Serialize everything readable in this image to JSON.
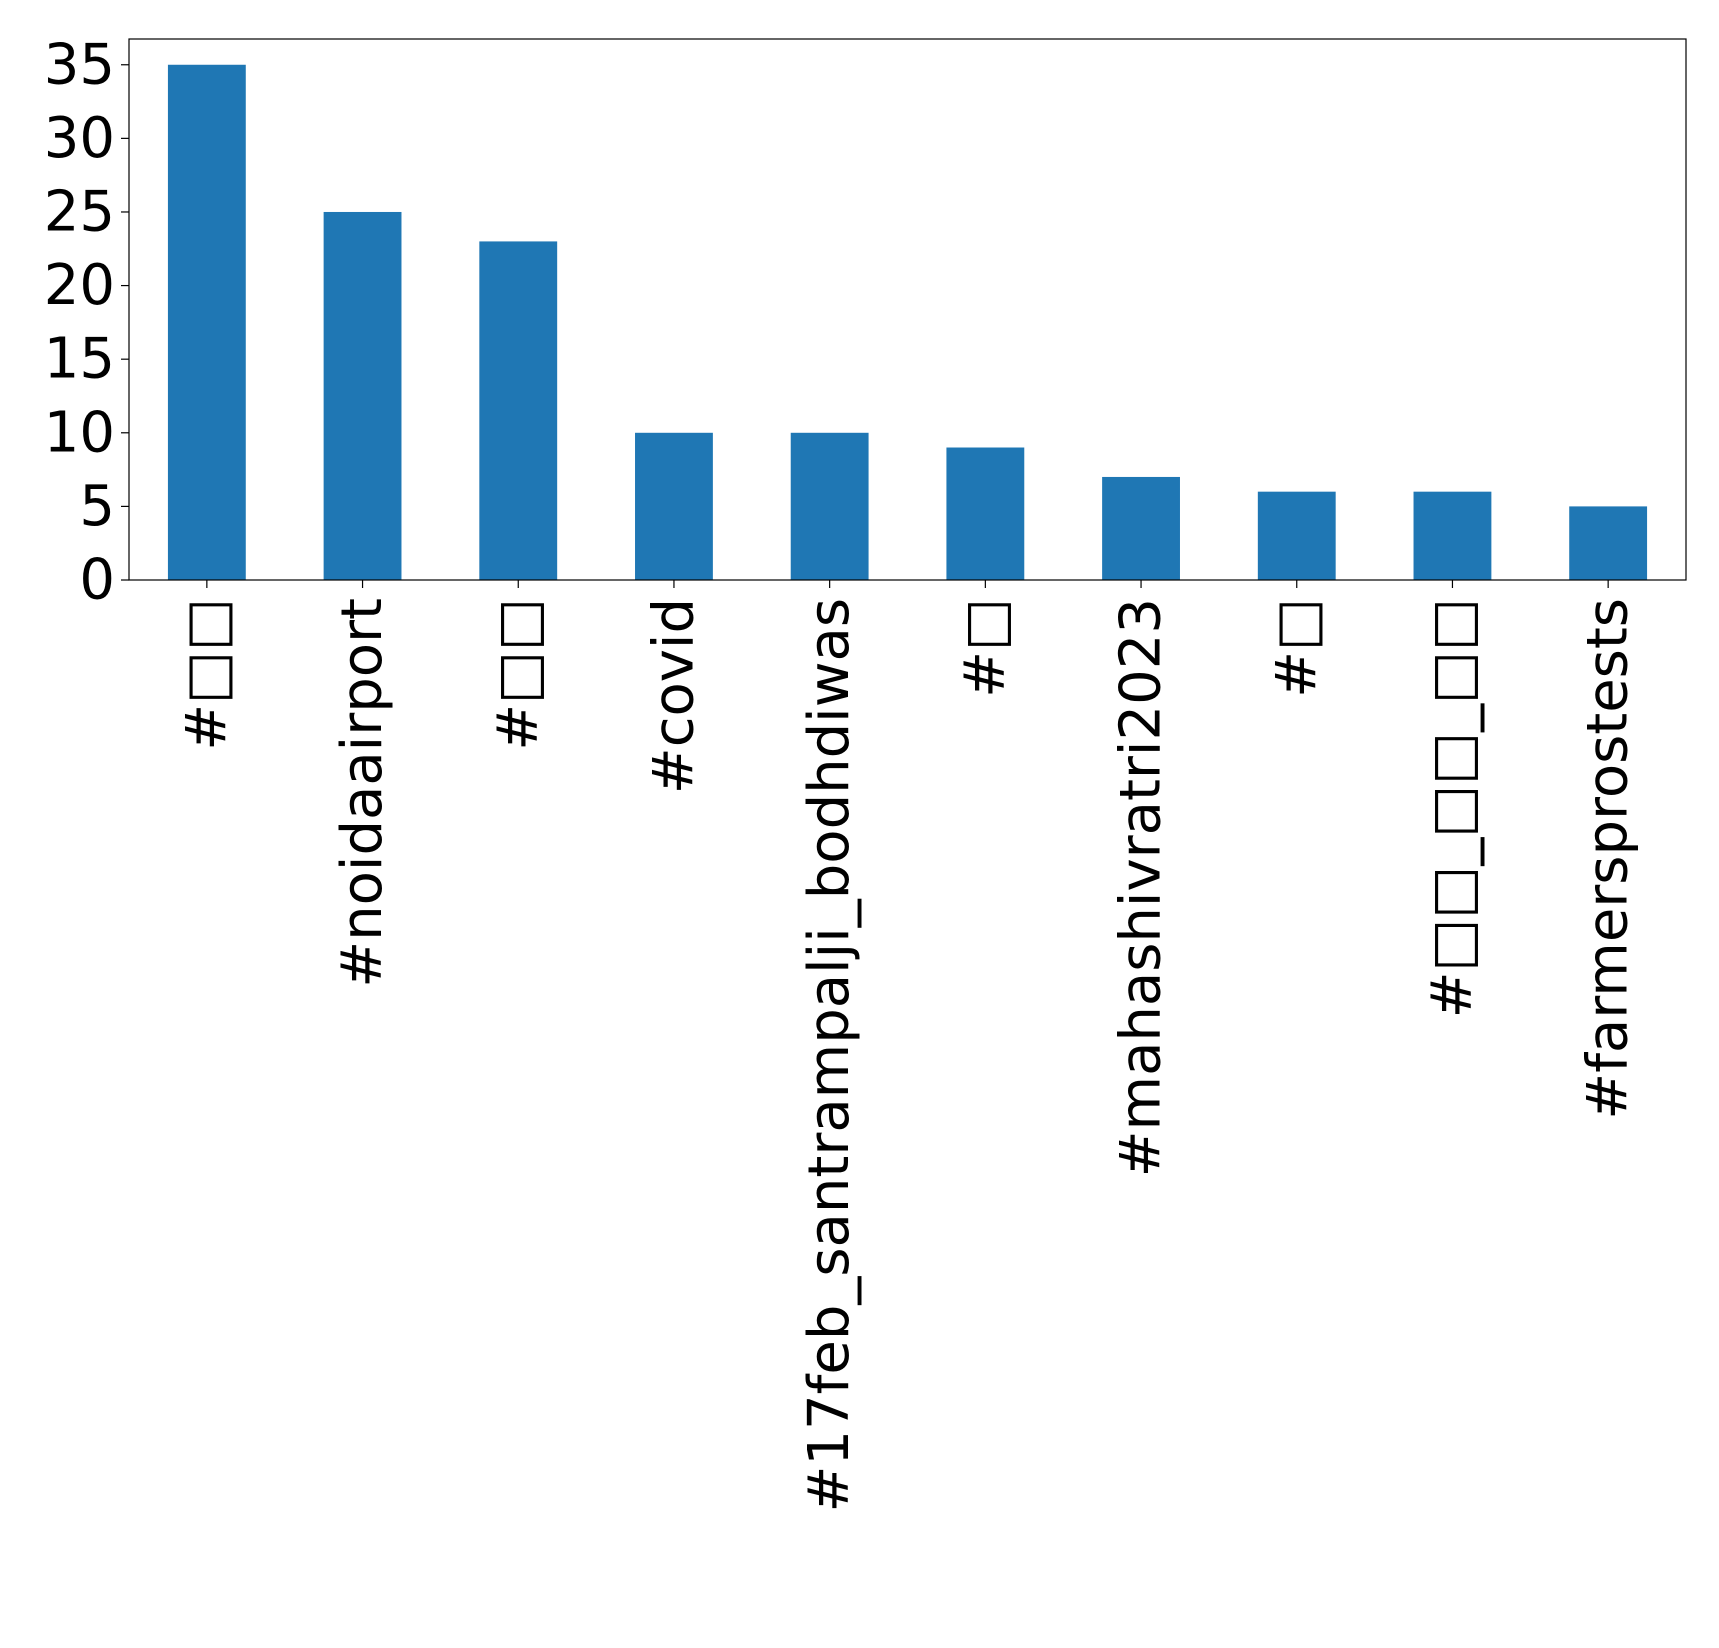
{
  "chart_data": {
    "type": "bar",
    "title": "",
    "xlabel": "",
    "ylabel": "",
    "categories": [
      "#□□",
      "#noidaairport",
      "#□□",
      "#covid",
      "#17feb_santrampalji_bodhdiwas",
      "#□",
      "#mahashivratri2023",
      "#□",
      "#□□_□□_□□",
      "#farmersprostests"
    ],
    "values": [
      35,
      25,
      23,
      10,
      10,
      9,
      7,
      6,
      6,
      5
    ],
    "ylim": [
      0,
      36.75
    ],
    "yticks": [
      0,
      5,
      10,
      15,
      20,
      25,
      30,
      35
    ],
    "bar_color": "#1f77b4",
    "grid": false,
    "legend": false
  }
}
